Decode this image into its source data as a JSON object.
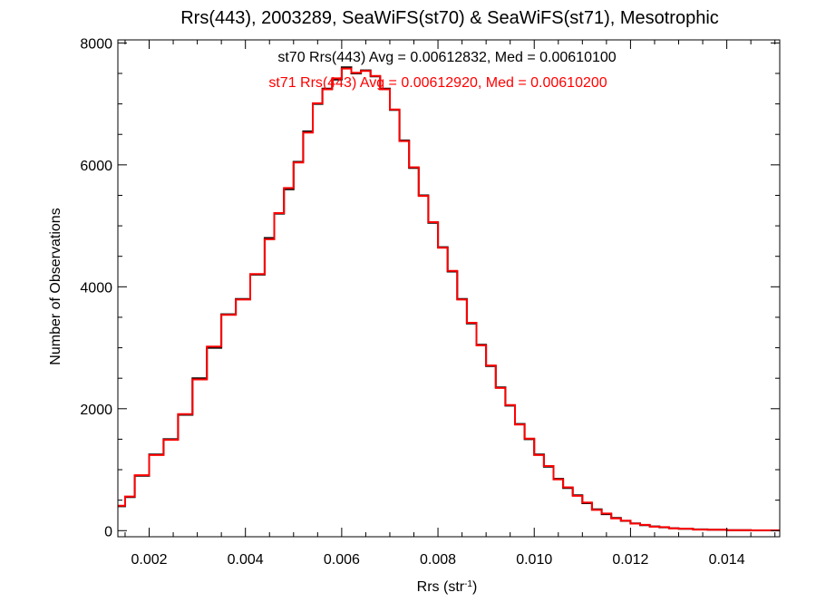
{
  "chart_data": {
    "type": "histogram-step",
    "title": "Rrs(443), 2003289, SeaWiFS(st70) & SeaWiFS(st71), Mesotrophic",
    "xlabel": "Rrs (str",
    "xlabel_sup": "-1",
    "xlabel_close": ")",
    "ylabel": "Number of Observations",
    "xlim": [
      0.00135,
      0.0151
    ],
    "ylim": [
      -100,
      8050
    ],
    "x_ticks": [
      0.002,
      0.004,
      0.006,
      0.008,
      0.01,
      0.012,
      0.014
    ],
    "x_tick_labels": [
      "0.002",
      "0.004",
      "0.006",
      "0.008",
      "0.010",
      "0.012",
      "0.014"
    ],
    "y_ticks": [
      0,
      2000,
      4000,
      6000,
      8000
    ],
    "y_tick_labels": [
      "0",
      "2000",
      "4000",
      "6000",
      "8000"
    ],
    "x_minor_step": 0.0005,
    "y_minor_step": 500,
    "annotations": [
      {
        "text": "st70 Rrs(443) Avg = 0.00612832, Med = 0.00610100",
        "color": "#000000"
      },
      {
        "text": "st71 Rrs(443) Avg = 0.00612920, Med = 0.00610200",
        "color": "#ff0000"
      }
    ],
    "series": [
      {
        "name": "st70",
        "color": "#000000",
        "x": [
          0.00135,
          0.0015,
          0.0017,
          0.002,
          0.0023,
          0.0026,
          0.0029,
          0.0032,
          0.0035,
          0.0038,
          0.0041,
          0.0044,
          0.0046,
          0.0048,
          0.005,
          0.0052,
          0.0054,
          0.0056,
          0.0058,
          0.006,
          0.0062,
          0.0064,
          0.0066,
          0.0068,
          0.007,
          0.0072,
          0.0074,
          0.0076,
          0.0078,
          0.008,
          0.0082,
          0.0084,
          0.0086,
          0.0088,
          0.009,
          0.0092,
          0.0094,
          0.0096,
          0.0098,
          0.01,
          0.0102,
          0.0104,
          0.0106,
          0.0108,
          0.011,
          0.0112,
          0.0114,
          0.0116,
          0.0118,
          0.012,
          0.0122,
          0.0124,
          0.0126,
          0.0128,
          0.013,
          0.0133,
          0.0136,
          0.014,
          0.0145,
          0.0151
        ],
        "y": [
          400,
          550,
          900,
          1250,
          1500,
          1900,
          2500,
          3000,
          3550,
          3800,
          4200,
          4800,
          5200,
          5600,
          6050,
          6550,
          7000,
          7250,
          7400,
          7600,
          7500,
          7550,
          7450,
          7250,
          6900,
          6400,
          5950,
          5500,
          5050,
          4650,
          4250,
          3800,
          3400,
          3050,
          2700,
          2350,
          2050,
          1750,
          1500,
          1250,
          1050,
          850,
          700,
          580,
          450,
          350,
          270,
          210,
          160,
          120,
          90,
          70,
          55,
          40,
          30,
          20,
          15,
          8,
          4,
          2
        ]
      },
      {
        "name": "st71",
        "color": "#ff0000",
        "x": [
          0.00135,
          0.0015,
          0.0017,
          0.002,
          0.0023,
          0.0026,
          0.0029,
          0.0032,
          0.0035,
          0.0038,
          0.0041,
          0.0044,
          0.0046,
          0.0048,
          0.005,
          0.0052,
          0.0054,
          0.0056,
          0.0058,
          0.006,
          0.0062,
          0.0064,
          0.0066,
          0.0068,
          0.007,
          0.0072,
          0.0074,
          0.0076,
          0.0078,
          0.008,
          0.0082,
          0.0084,
          0.0086,
          0.0088,
          0.009,
          0.0092,
          0.0094,
          0.0096,
          0.0098,
          0.01,
          0.0102,
          0.0104,
          0.0106,
          0.0108,
          0.011,
          0.0112,
          0.0114,
          0.0116,
          0.0118,
          0.012,
          0.0122,
          0.0124,
          0.0126,
          0.0128,
          0.013,
          0.0133,
          0.0136,
          0.014,
          0.0145,
          0.0151
        ],
        "y": [
          410,
          560,
          910,
          1240,
          1490,
          1910,
          2480,
          3020,
          3540,
          3790,
          4210,
          4780,
          5210,
          5620,
          6040,
          6530,
          7010,
          7240,
          7420,
          7580,
          7510,
          7540,
          7460,
          7240,
          6910,
          6390,
          5960,
          5490,
          5060,
          4640,
          4260,
          3790,
          3410,
          3040,
          2710,
          2340,
          2060,
          1740,
          1510,
          1240,
          1060,
          840,
          710,
          570,
          460,
          340,
          280,
          200,
          165,
          115,
          95,
          65,
          57,
          38,
          32,
          18,
          16,
          7,
          5,
          2
        ]
      }
    ]
  }
}
